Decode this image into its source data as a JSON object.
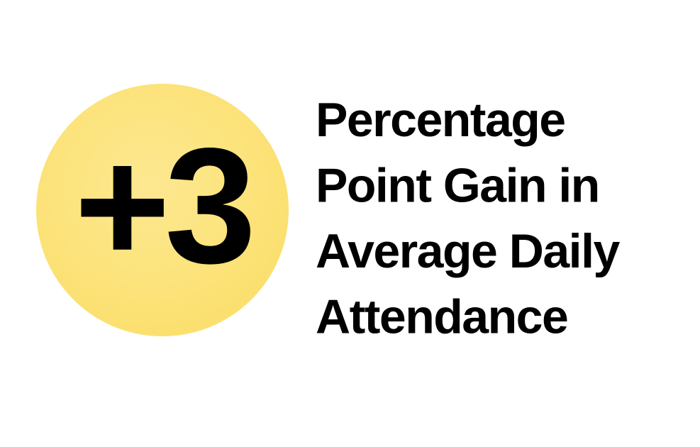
{
  "stat": {
    "value": "+3"
  },
  "caption": {
    "lines": [
      "Percentage",
      "Point Gain in",
      "Average Daily",
      "Attendance"
    ]
  }
}
